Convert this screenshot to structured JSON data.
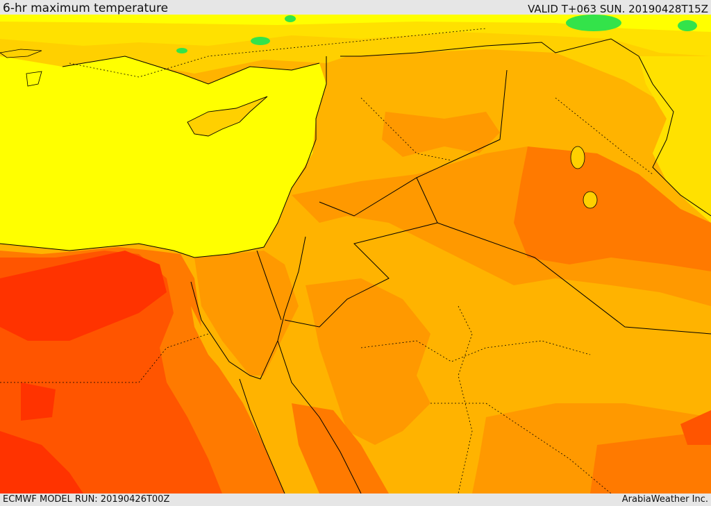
{
  "header": {
    "title": "6-hr maximum temperature",
    "valid": "VALID T+063 SUN. 20190428T15Z"
  },
  "footer": {
    "model_run": "ECMWF MODEL RUN: 20190426T00Z",
    "credit": "ArabiaWeather Inc."
  },
  "colors": {
    "pale_yellow": "#ffff00",
    "yellow": "#ffe100",
    "gold": "#ffd000",
    "orange_light": "#ffb300",
    "orange": "#ff9900",
    "orange_dark": "#ff7a00",
    "red_orange": "#ff5500",
    "red": "#ff3300",
    "green": "#33e34a",
    "border": "#000000"
  }
}
